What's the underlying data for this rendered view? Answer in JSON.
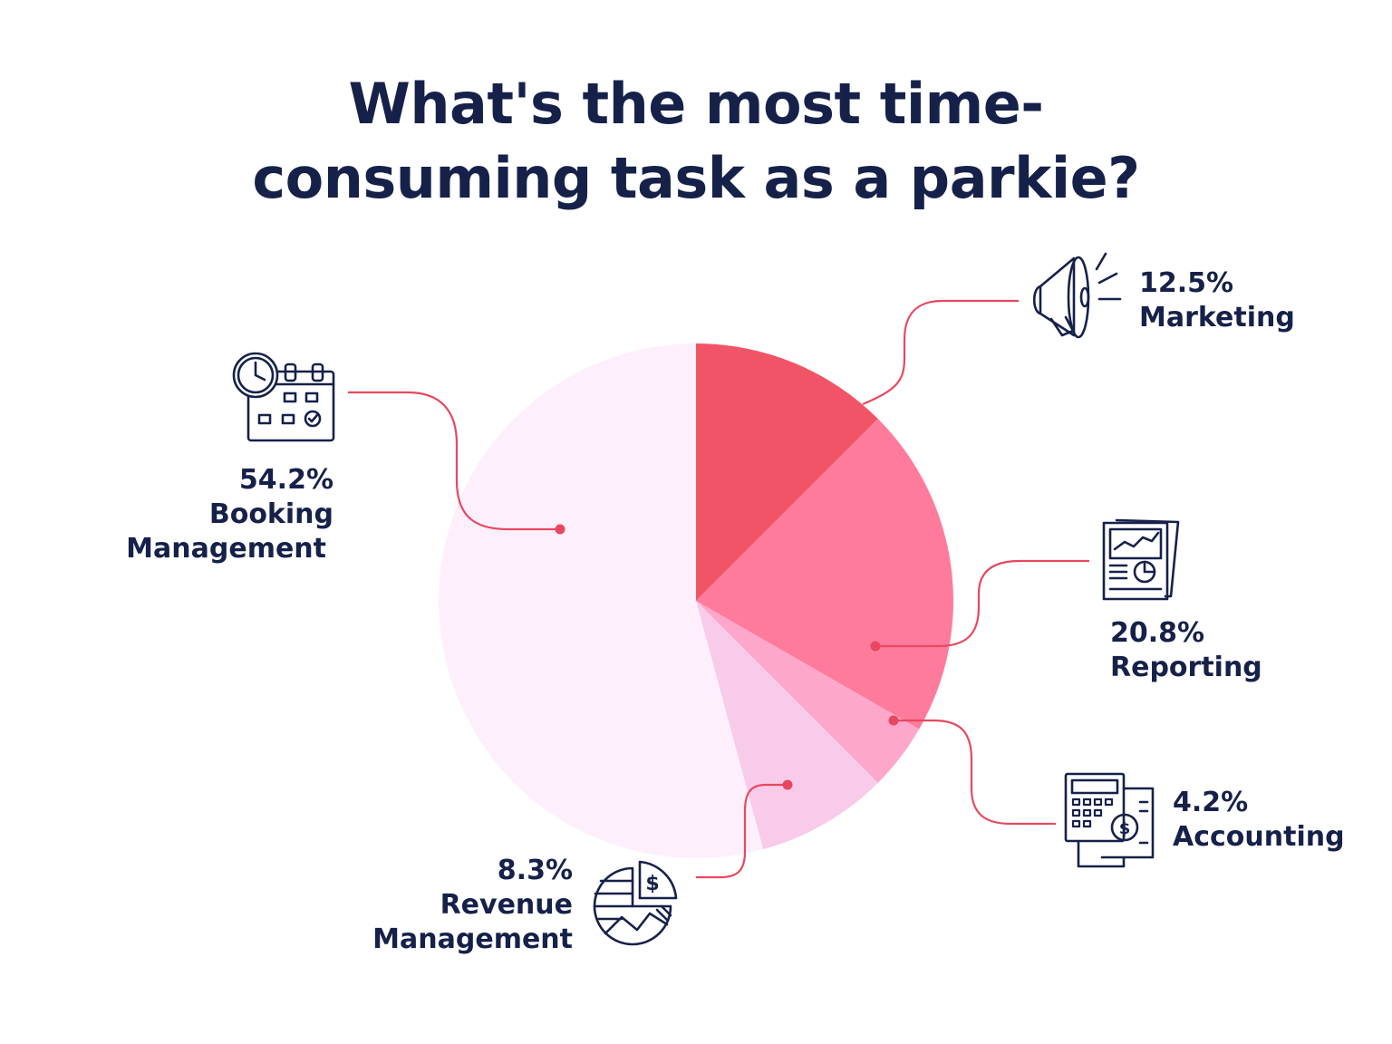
{
  "title_lines": [
    "What's the most time-",
    "consuming task as a parkie?"
  ],
  "chart_data": {
    "type": "pie",
    "title": "What's the most time-consuming task as a parkie?",
    "start_angle": "12 o'clock",
    "direction": "clockwise",
    "slices": [
      {
        "label": "Marketing",
        "value": 12.5,
        "percent_text": "12.5%",
        "color": "#f25467",
        "icon": "megaphone-icon"
      },
      {
        "label": "Reporting",
        "value": 20.8,
        "percent_text": "20.8%",
        "color": "#ff7b9c",
        "icon": "report-chart-icon"
      },
      {
        "label": "Accounting",
        "value": 4.2,
        "percent_text": "4.2%",
        "color": "#fda7cb",
        "icon": "calculator-icon"
      },
      {
        "label": "Revenue Management",
        "value": 8.3,
        "percent_text": "8.3%",
        "color": "#f9cbea",
        "icon": "revenue-pie-icon"
      },
      {
        "label": "Booking Management",
        "value": 54.2,
        "percent_text": "54.2%",
        "color": "#fdf0fc",
        "icon": "calendar-clock-icon"
      }
    ]
  },
  "labels": {
    "marketing": {
      "percent": "12.5%",
      "name": "Marketing"
    },
    "reporting": {
      "percent": "20.8%",
      "name": "Reporting"
    },
    "accounting": {
      "percent": "4.2%",
      "name": "Accounting"
    },
    "revenue": {
      "percent": "8.3%",
      "name_line1": "Revenue",
      "name_line2": "Management"
    },
    "booking": {
      "percent": "54.2%",
      "name_line1": "Booking",
      "name_line2": "Management"
    }
  },
  "colors": {
    "ink": "#16214a",
    "leader": "#e8485f"
  }
}
